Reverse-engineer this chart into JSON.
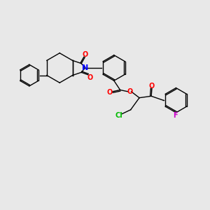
{
  "background_color": "#e8e8e8",
  "line_color": "#000000",
  "atom_colors": {
    "O": "#ff0000",
    "N": "#0000ff",
    "Cl": "#00bb00",
    "F": "#cc00cc"
  },
  "figsize": [
    3.0,
    3.0
  ],
  "dpi": 100
}
